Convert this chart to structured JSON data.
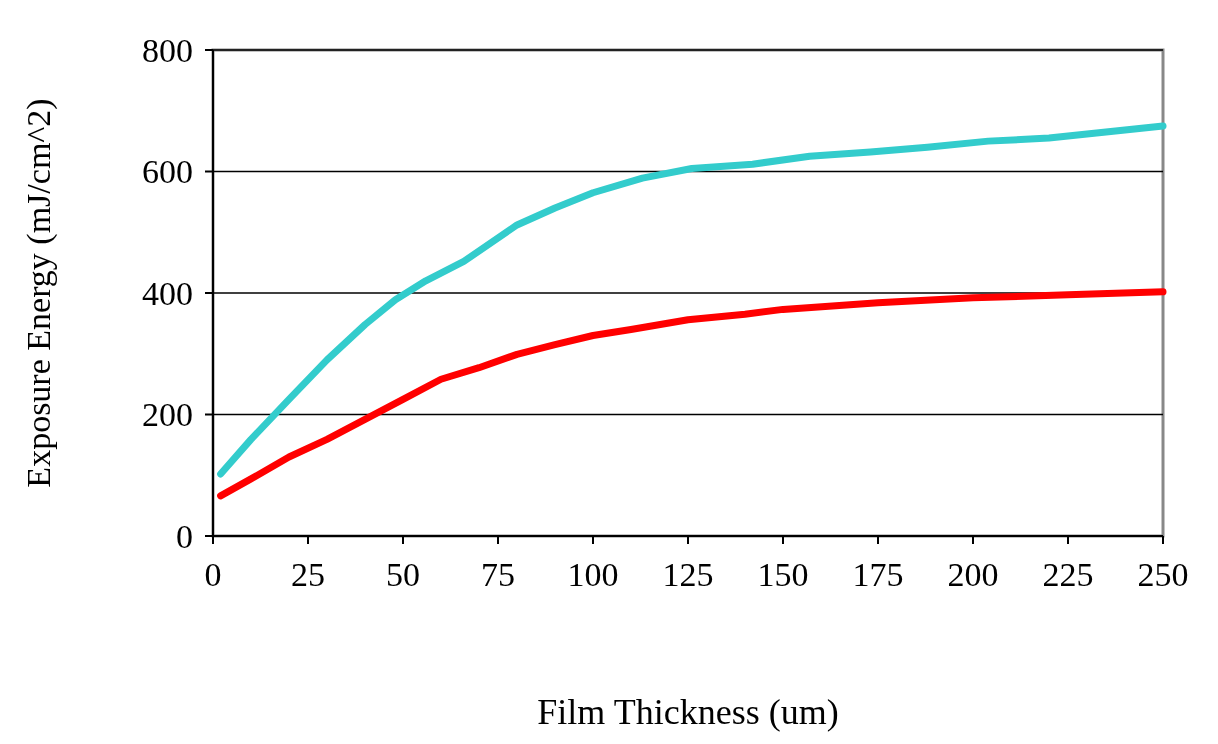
{
  "chart_data": {
    "type": "line",
    "xlabel": "Film Thickness (um)",
    "ylabel": "Exposure Energy (mJ/cm^2)",
    "xlim": [
      0,
      250
    ],
    "xticks": [
      0,
      25,
      50,
      75,
      100,
      125,
      150,
      175,
      200,
      225,
      250
    ],
    "ylim": [
      0,
      800
    ],
    "yticks": [
      0,
      200,
      400,
      600,
      800
    ],
    "grid": "y",
    "marker": "none",
    "line_style": "solid",
    "series": [
      {
        "color": "#33cccc",
        "x": [
          2,
          10,
          20,
          30,
          40,
          48,
          56,
          66,
          80,
          90,
          100,
          113,
          126,
          142,
          157,
          173,
          188,
          204,
          220,
          235,
          250
        ],
        "values": [
          102,
          159,
          225,
          290,
          348,
          389,
          420,
          452,
          512,
          540,
          565,
          589,
          605,
          612,
          625,
          632,
          640,
          650,
          655,
          665,
          675
        ]
      },
      {
        "color": "#ff0000",
        "x": [
          2,
          10,
          20,
          30,
          40,
          50,
          60,
          70,
          80,
          90,
          100,
          110,
          125,
          140,
          150,
          175,
          200,
          225,
          250
        ],
        "values": [
          66,
          94,
          130,
          159,
          192,
          225,
          258,
          277,
          299,
          315,
          330,
          340,
          356,
          365,
          373,
          384,
          392,
          397,
          402
        ]
      }
    ]
  }
}
